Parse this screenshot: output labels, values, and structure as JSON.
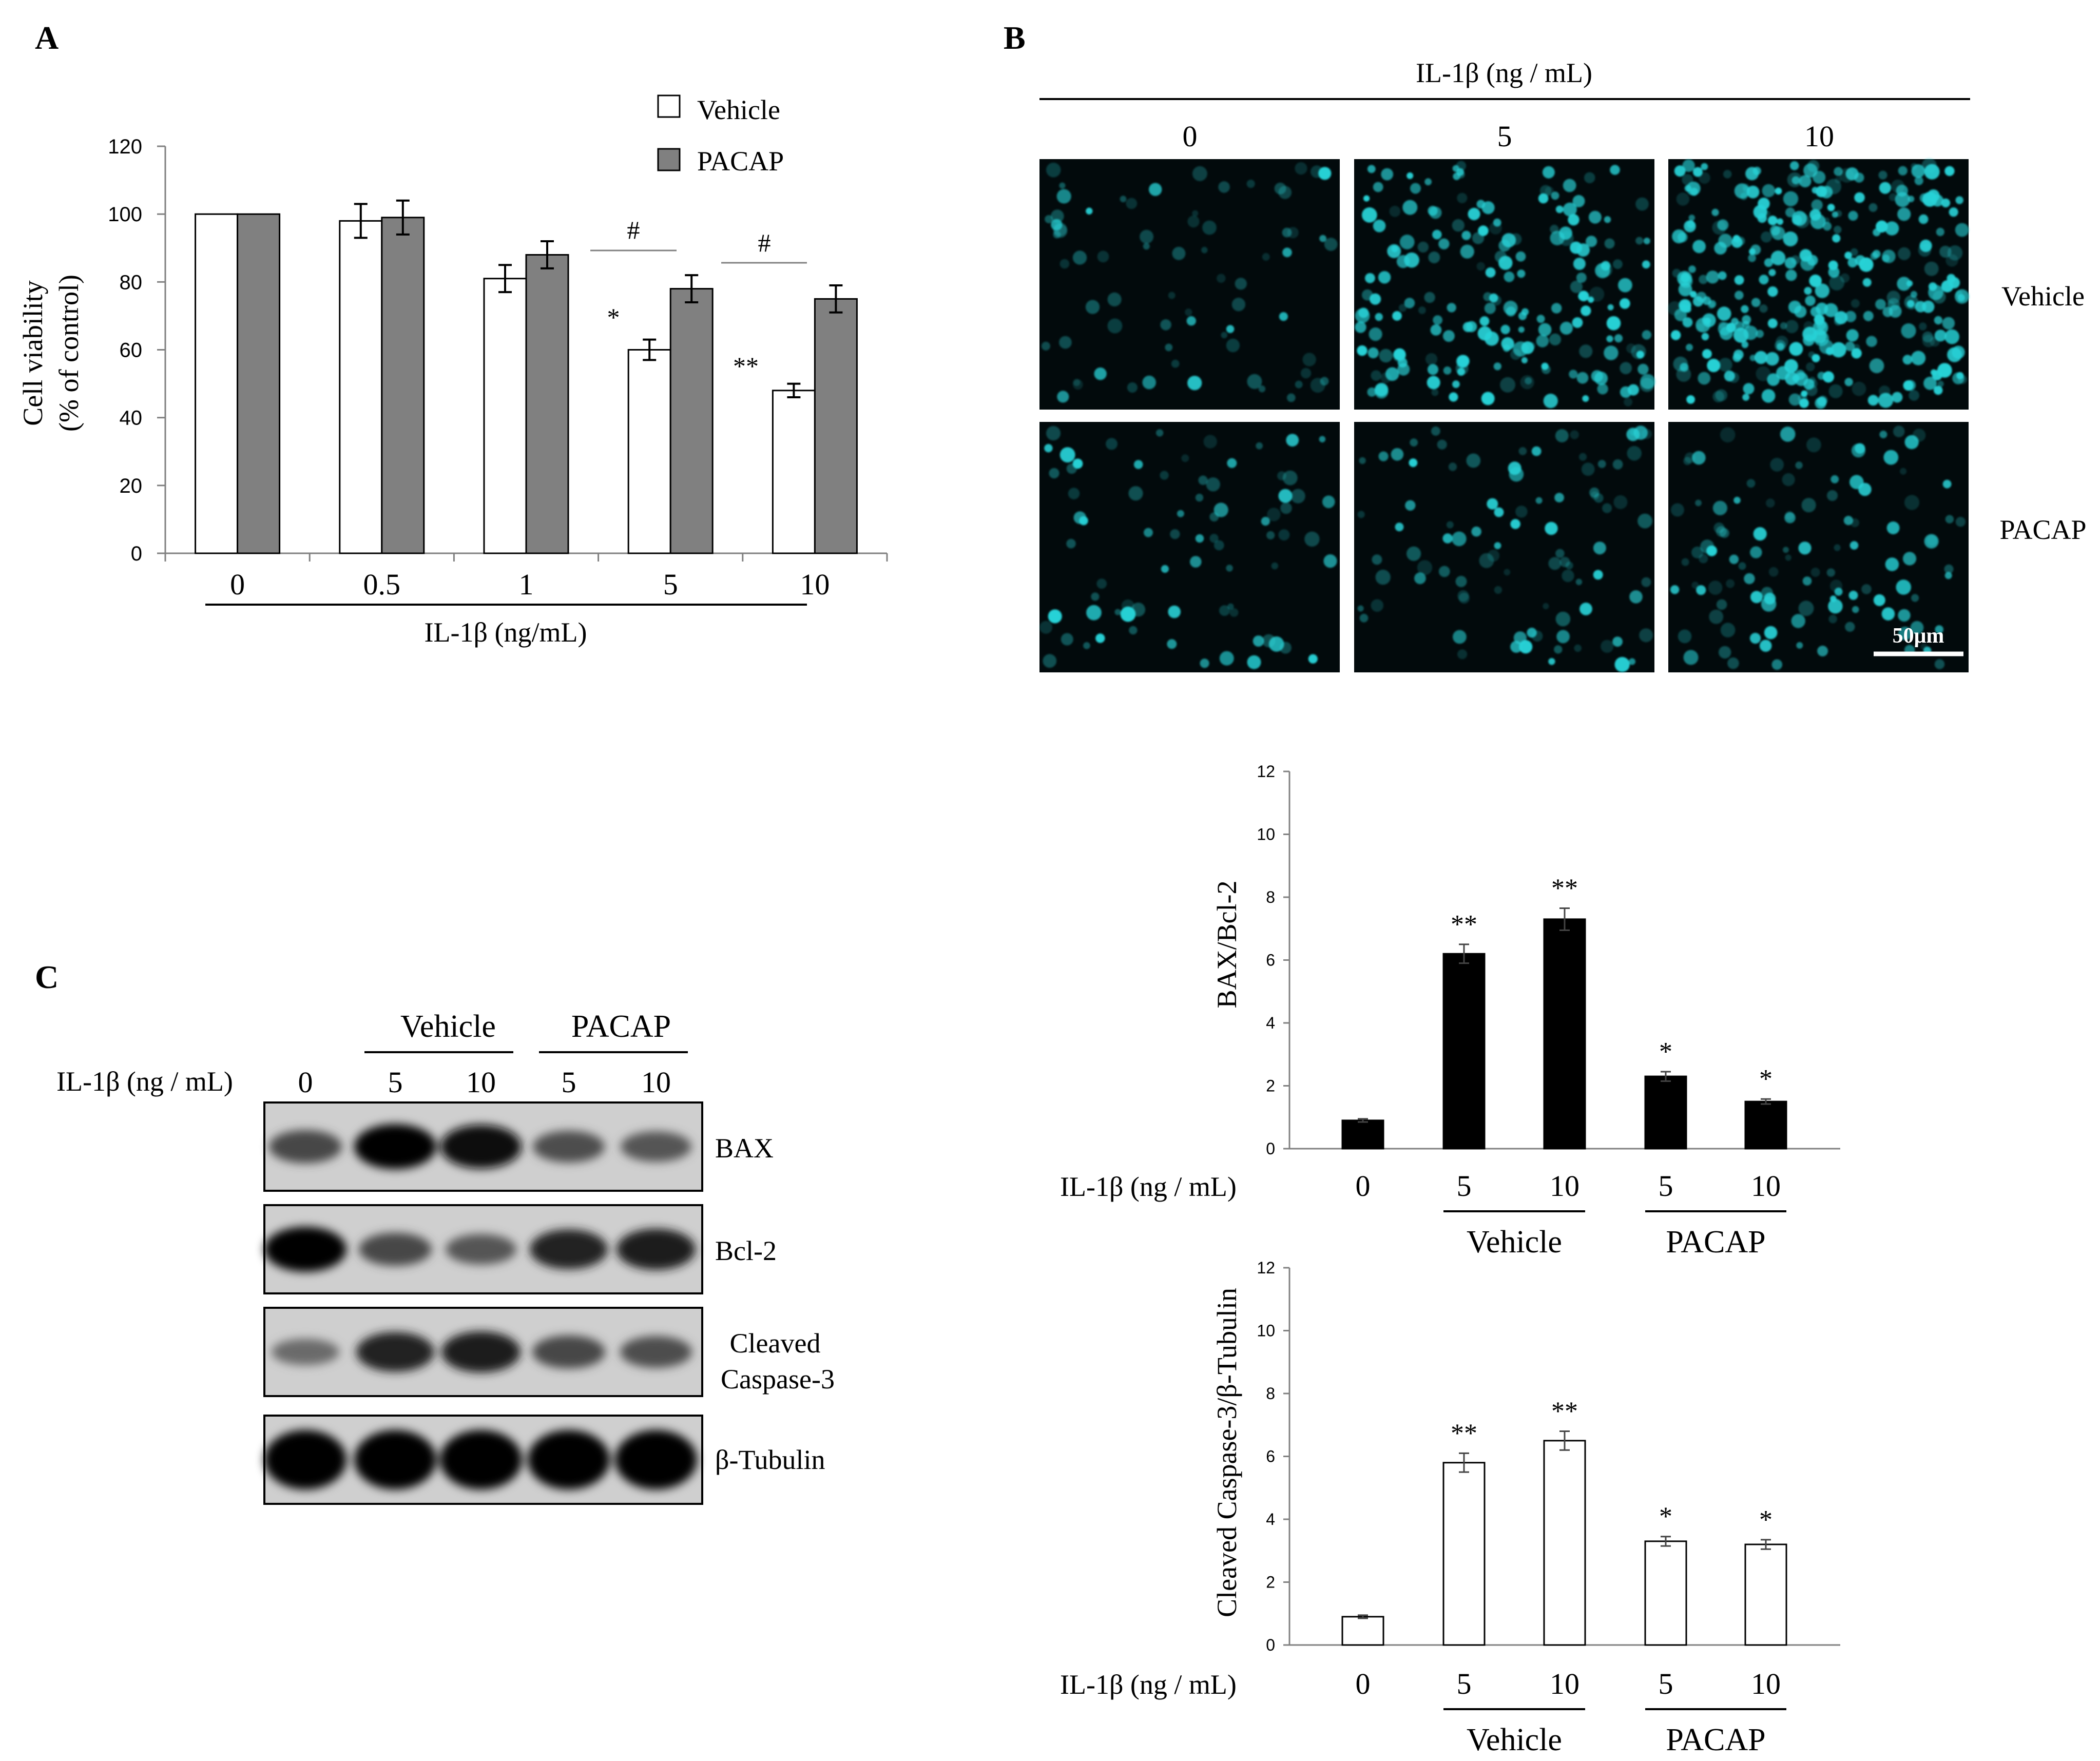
{
  "panel_labels": {
    "a": "A",
    "b": "B",
    "c": "C"
  },
  "panel_a": {
    "legend": {
      "vehicle": "Vehicle",
      "pacap": "PACAP"
    },
    "significance": {
      "nine": [
        "*",
        "**"
      ],
      "hash": [
        "#",
        "#"
      ]
    }
  },
  "panel_b": {
    "header": "IL-1β (ng / mL)",
    "columns": [
      "0",
      "5",
      "10"
    ],
    "rows": [
      "Vehicle",
      "PACAP"
    ],
    "scale_bar": "50μm"
  },
  "panel_c": {
    "row_label": "IL-1β (ng / mL)",
    "lanes": [
      "0",
      "5",
      "10",
      "5",
      "10"
    ],
    "group_labels": [
      "Vehicle",
      "PACAP"
    ],
    "blots": [
      {
        "label": "BAX",
        "intensity": [
          0.55,
          1.0,
          0.95,
          0.5,
          0.45
        ]
      },
      {
        "label": "Bcl-2",
        "intensity": [
          1.0,
          0.55,
          0.45,
          0.8,
          0.85
        ]
      },
      {
        "label_lines": [
          "Cleaved",
          "Caspase-3"
        ],
        "intensity": [
          0.3,
          0.8,
          0.85,
          0.55,
          0.5
        ]
      },
      {
        "label": "β-Tubulin",
        "intensity": [
          1.0,
          1.0,
          1.0,
          1.0,
          1.0
        ]
      }
    ]
  },
  "chart_data": [
    {
      "type": "bar",
      "title": "",
      "xlabel": "IL-1β (ng/mL)",
      "ylabel_lines": [
        "Cell viability",
        "(% of control)"
      ],
      "categories": [
        "0",
        "0.5",
        "1",
        "5",
        "10"
      ],
      "series": [
        {
          "name": "Vehicle",
          "values": [
            100,
            98,
            81,
            60,
            48
          ],
          "errors": [
            0,
            5,
            4,
            3,
            2
          ],
          "color": "#ffffff"
        },
        {
          "name": "PACAP",
          "values": [
            100,
            99,
            88,
            78,
            75
          ],
          "errors": [
            0,
            5,
            4,
            4,
            4
          ],
          "color": "#808080"
        }
      ],
      "ylim": [
        0,
        120
      ],
      "yticks": [
        0,
        20,
        40,
        60,
        80,
        100,
        120
      ],
      "legend": "top-right"
    },
    {
      "type": "bar",
      "title": "",
      "ylabel": "BAX/Bcl-2",
      "xlabel": "IL-1β (ng / mL)",
      "categories": [
        "0",
        "5",
        "10",
        "5",
        "10"
      ],
      "groups": [
        {
          "label": "Vehicle",
          "from": 1,
          "to": 2
        },
        {
          "label": "PACAP",
          "from": 3,
          "to": 4
        }
      ],
      "values": [
        0.9,
        6.2,
        7.3,
        2.3,
        1.5
      ],
      "errors": [
        0.05,
        0.3,
        0.35,
        0.15,
        0.08
      ],
      "significance": [
        "",
        "**",
        "**",
        "*",
        "*"
      ],
      "color": "#000000",
      "ylim": [
        0,
        12
      ],
      "yticks": [
        0,
        2,
        4,
        6,
        8,
        10,
        12
      ]
    },
    {
      "type": "bar",
      "title": "",
      "ylabel": "Cleaved Caspase-3/β-Tubulin",
      "xlabel": "IL-1β (ng / mL)",
      "categories": [
        "0",
        "5",
        "10",
        "5",
        "10"
      ],
      "groups": [
        {
          "label": "Vehicle",
          "from": 1,
          "to": 2
        },
        {
          "label": "PACAP",
          "from": 3,
          "to": 4
        }
      ],
      "values": [
        0.9,
        5.8,
        6.5,
        3.3,
        3.2
      ],
      "errors": [
        0.05,
        0.3,
        0.3,
        0.15,
        0.15
      ],
      "significance": [
        "",
        "**",
        "**",
        "*",
        "*"
      ],
      "color": "#ffffff",
      "ylim": [
        0,
        12
      ],
      "yticks": [
        0,
        2,
        4,
        6,
        8,
        10,
        12
      ]
    }
  ]
}
